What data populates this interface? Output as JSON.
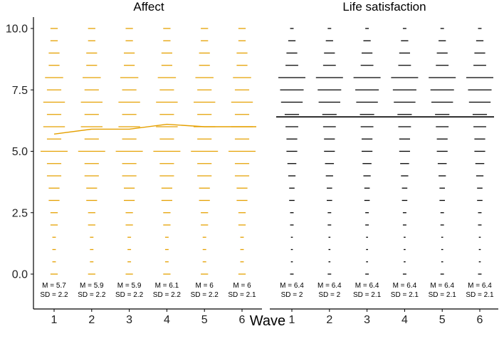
{
  "chart_data": {
    "type": "scatter",
    "x_label": "Wave",
    "y_ticks": [
      "0.0",
      "2.5",
      "5.0",
      "7.5",
      "10.0"
    ],
    "ylim": [
      -1.5,
      10.3
    ],
    "waves": [
      "1",
      "2",
      "3",
      "4",
      "5",
      "6"
    ],
    "score_levels": [
      0,
      0.5,
      1,
      1.5,
      2,
      2.5,
      3,
      3.5,
      4,
      4.5,
      5,
      5.5,
      6,
      6.5,
      7,
      7.5,
      8,
      8.5,
      9,
      9.5,
      10
    ],
    "panels": [
      {
        "title": "Affect",
        "color": "#e5a000",
        "means": [
          5.7,
          5.9,
          5.9,
          6.1,
          6.0,
          6.0
        ],
        "sds": [
          2.2,
          2.2,
          2.2,
          2.2,
          2.2,
          2.1
        ],
        "mean_labels": [
          "M = 5.7",
          "M = 5.9",
          "M = 5.9",
          "M = 6.1",
          "M = 6",
          "M = 6"
        ],
        "sd_labels": [
          "SD = 2.2",
          "SD = 2.2",
          "SD = 2.2",
          "SD = 2.2",
          "SD = 2.2",
          "SD = 2.1"
        ],
        "relative_frequency": [
          [
            0.27,
            0.13,
            0.13,
            0.13,
            0.27,
            0.27,
            0.4,
            0.4,
            0.53,
            0.53,
            1.0,
            0.53,
            0.8,
            0.53,
            0.8,
            0.53,
            0.67,
            0.4,
            0.4,
            0.27,
            0.27
          ],
          [
            0.27,
            0.13,
            0.13,
            0.13,
            0.27,
            0.27,
            0.4,
            0.4,
            0.53,
            0.53,
            1.0,
            0.53,
            0.8,
            0.53,
            0.8,
            0.53,
            0.67,
            0.4,
            0.4,
            0.27,
            0.27
          ],
          [
            0.27,
            0.13,
            0.13,
            0.13,
            0.27,
            0.27,
            0.4,
            0.4,
            0.53,
            0.53,
            1.0,
            0.53,
            0.8,
            0.53,
            0.8,
            0.53,
            0.67,
            0.4,
            0.4,
            0.27,
            0.27
          ],
          [
            0.27,
            0.13,
            0.13,
            0.13,
            0.27,
            0.27,
            0.4,
            0.4,
            0.53,
            0.53,
            1.0,
            0.53,
            0.8,
            0.53,
            0.8,
            0.53,
            0.67,
            0.4,
            0.4,
            0.27,
            0.27
          ],
          [
            0.27,
            0.13,
            0.13,
            0.13,
            0.27,
            0.27,
            0.4,
            0.4,
            0.53,
            0.53,
            1.0,
            0.53,
            0.8,
            0.53,
            0.8,
            0.53,
            0.67,
            0.4,
            0.4,
            0.27,
            0.27
          ],
          [
            0.27,
            0.13,
            0.13,
            0.13,
            0.27,
            0.27,
            0.4,
            0.4,
            0.53,
            0.53,
            1.0,
            0.53,
            0.8,
            0.53,
            0.8,
            0.53,
            0.67,
            0.4,
            0.4,
            0.27,
            0.27
          ]
        ]
      },
      {
        "title": "Life satisfaction",
        "color": "#000000",
        "means": [
          6.4,
          6.4,
          6.4,
          6.4,
          6.4,
          6.4
        ],
        "sds": [
          2.0,
          2.0,
          2.1,
          2.1,
          2.1,
          2.1
        ],
        "mean_labels": [
          "M = 6.4",
          "M = 6.4",
          "M = 6.4",
          "M = 6.4",
          "M = 6.4",
          "M = 6.4"
        ],
        "sd_labels": [
          "SD = 2",
          "SD = 2",
          "SD = 2.1",
          "SD = 2.1",
          "SD = 2.1",
          "SD = 2.1"
        ],
        "relative_frequency": [
          [
            0.13,
            0.07,
            0.07,
            0.07,
            0.13,
            0.13,
            0.2,
            0.2,
            0.27,
            0.33,
            0.4,
            0.4,
            0.47,
            0.53,
            0.8,
            0.87,
            1.0,
            0.47,
            0.4,
            0.27,
            0.13
          ],
          [
            0.13,
            0.07,
            0.07,
            0.07,
            0.13,
            0.13,
            0.2,
            0.2,
            0.27,
            0.33,
            0.4,
            0.4,
            0.47,
            0.53,
            0.8,
            0.87,
            1.0,
            0.47,
            0.4,
            0.27,
            0.13
          ],
          [
            0.13,
            0.07,
            0.07,
            0.07,
            0.13,
            0.13,
            0.2,
            0.2,
            0.27,
            0.33,
            0.4,
            0.4,
            0.47,
            0.53,
            0.8,
            0.87,
            1.0,
            0.47,
            0.4,
            0.27,
            0.13
          ],
          [
            0.13,
            0.07,
            0.07,
            0.07,
            0.13,
            0.13,
            0.2,
            0.2,
            0.27,
            0.33,
            0.4,
            0.4,
            0.47,
            0.53,
            0.8,
            0.87,
            1.0,
            0.47,
            0.4,
            0.27,
            0.13
          ],
          [
            0.13,
            0.07,
            0.07,
            0.07,
            0.13,
            0.13,
            0.2,
            0.2,
            0.27,
            0.33,
            0.4,
            0.4,
            0.47,
            0.53,
            0.8,
            0.87,
            1.0,
            0.47,
            0.4,
            0.27,
            0.13
          ],
          [
            0.13,
            0.07,
            0.07,
            0.07,
            0.13,
            0.13,
            0.2,
            0.2,
            0.27,
            0.33,
            0.4,
            0.4,
            0.47,
            0.53,
            0.8,
            0.87,
            1.0,
            0.47,
            0.4,
            0.27,
            0.13
          ]
        ]
      }
    ]
  }
}
